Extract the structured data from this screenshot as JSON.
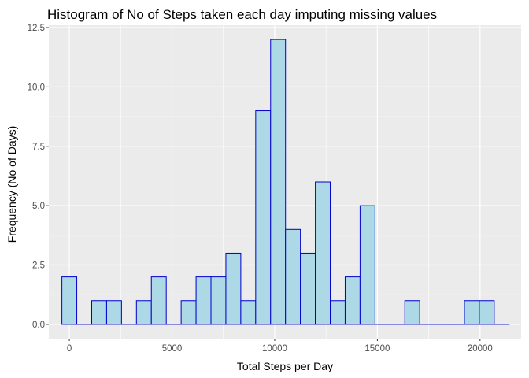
{
  "chart_data": {
    "type": "bar",
    "title": "Histogram of No of Steps taken each day imputing missing values",
    "xlabel": "Total Steps per Day",
    "ylabel": "Frequency (No of Days)",
    "xlim": [
      -1000,
      22000
    ],
    "ylim": [
      -0.6,
      12.6
    ],
    "x_ticks": [
      0,
      5000,
      10000,
      15000,
      20000
    ],
    "x_tick_labels": [
      "0",
      "5000",
      "10000",
      "15000",
      "20000"
    ],
    "y_ticks": [
      0,
      2.5,
      5,
      7.5,
      10,
      12.5
    ],
    "y_tick_labels": [
      "0.0",
      "2.5",
      "5.0",
      "7.5",
      "10.0",
      "12.5"
    ],
    "bin_width": 726,
    "bin_starts": [
      -363,
      363,
      1089,
      1815,
      2541,
      3267,
      3993,
      4719,
      5445,
      6171,
      6897,
      7623,
      8349,
      9075,
      9801,
      10527,
      11253,
      11979,
      12705,
      13431,
      14157,
      14883,
      15609,
      16335,
      17061,
      17787,
      18513,
      19239,
      19965,
      20691
    ],
    "values": [
      2,
      0,
      1,
      1,
      0,
      1,
      2,
      0,
      1,
      2,
      2,
      3,
      1,
      9,
      12,
      4,
      3,
      6,
      1,
      2,
      5,
      0,
      0,
      1,
      0,
      0,
      0,
      1,
      1,
      0
    ],
    "fill_color": "#add8e6",
    "border_color": "#0000cd",
    "panel_background": "#ebebeb",
    "grid": true,
    "grid_color": "#ffffff",
    "legend": "none"
  }
}
